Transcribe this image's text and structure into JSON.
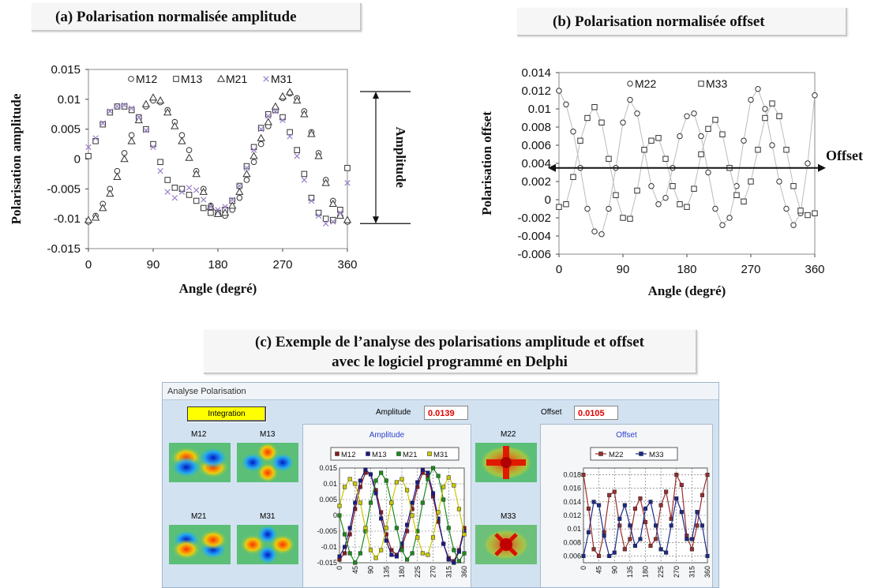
{
  "figure": {
    "panel_a_title": "(a)  Polarisation normalisée amplitude",
    "panel_b_title": "(b)  Polarisation normalisée offset",
    "panel_c_title_line1": "(c)   Exemple de l’analyse des polarisations amplitude et offset",
    "panel_c_title_line2": "avec le logiciel programmé en Delphi",
    "amplitude_annotation": "Amplitude",
    "offset_annotation": "Offset"
  },
  "app": {
    "window_title": "Analyse Polarisation",
    "integration_button": "Integration",
    "amplitude_label": "Amplitude",
    "amplitude_value": "0.0139",
    "offset_label": "Offset",
    "offset_value": "0.0105",
    "image_labels": {
      "m12": "M12",
      "m13": "M13",
      "m21": "M21",
      "m31": "M31",
      "m22": "M22",
      "m33": "M33"
    }
  },
  "chart_data": [
    {
      "id": "a",
      "type": "scatter",
      "xlabel": "Angle (degré)",
      "ylabel": "Polarisation amplitude",
      "xlim": [
        0,
        360
      ],
      "ylim": [
        -0.015,
        0.015
      ],
      "xticks": [
        "0",
        "90",
        "180",
        "270",
        "360"
      ],
      "yticks": [
        "-0.015",
        "-0.01",
        "-0.005",
        "0",
        "0.005",
        "0.01",
        "0.015"
      ],
      "legend": [
        "M12",
        "M13",
        "M21",
        "M31"
      ],
      "legend_position": "top",
      "x": [
        0,
        10,
        20,
        30,
        40,
        50,
        60,
        70,
        80,
        90,
        100,
        110,
        120,
        130,
        140,
        150,
        160,
        170,
        180,
        190,
        200,
        210,
        220,
        230,
        240,
        250,
        260,
        270,
        280,
        290,
        300,
        310,
        320,
        330,
        340,
        350,
        360
      ],
      "series": [
        {
          "name": "M12",
          "marker": "circle",
          "values": [
            -0.0105,
            -0.0095,
            -0.0075,
            -0.005,
            -0.002,
            0.001,
            0.004,
            0.0068,
            0.0088,
            0.0098,
            0.0095,
            0.0082,
            0.0062,
            0.004,
            0.0015,
            -0.002,
            -0.005,
            -0.0078,
            -0.0092,
            -0.0095,
            -0.0085,
            -0.0065,
            -0.0035,
            -0.0005,
            0.0025,
            0.0055,
            0.0082,
            0.0102,
            0.011,
            0.0102,
            0.008,
            0.0045,
            0.001,
            -0.0035,
            -0.007,
            -0.0095,
            -0.0105
          ]
        },
        {
          "name": "M13",
          "marker": "square",
          "values": [
            0.0005,
            0.003,
            0.0058,
            0.0078,
            0.0088,
            0.0088,
            0.0082,
            0.007,
            0.005,
            0.0025,
            -0.0005,
            -0.0035,
            -0.0048,
            -0.005,
            -0.006,
            -0.007,
            -0.0082,
            -0.009,
            -0.009,
            -0.0085,
            -0.007,
            -0.0045,
            -0.0012,
            0.002,
            0.0052,
            0.0075,
            0.0082,
            0.007,
            0.0045,
            0.0015,
            -0.0025,
            -0.0065,
            -0.009,
            -0.01,
            -0.0102,
            -0.0085,
            -0.0015
          ]
        },
        {
          "name": "M21",
          "marker": "triangle",
          "values": [
            -0.0102,
            -0.0098,
            -0.0082,
            -0.0058,
            -0.003,
            0.0,
            0.003,
            0.0065,
            0.0092,
            0.0103,
            0.0098,
            0.0078,
            0.0055,
            0.003,
            0.0002,
            -0.0025,
            -0.0055,
            -0.008,
            -0.0092,
            -0.009,
            -0.0078,
            -0.0055,
            -0.0025,
            0.0005,
            0.0035,
            0.0062,
            0.0088,
            0.0105,
            0.0112,
            0.0098,
            0.0075,
            0.0042,
            0.0005,
            -0.004,
            -0.0075,
            -0.0095,
            -0.0102
          ]
        },
        {
          "name": "M31",
          "marker": "x",
          "values": [
            0.002,
            0.0035,
            0.006,
            0.008,
            0.0088,
            0.009,
            0.0085,
            0.007,
            0.0048,
            0.002,
            -0.002,
            -0.0055,
            -0.0065,
            -0.0055,
            -0.0048,
            -0.0052,
            -0.0068,
            -0.008,
            -0.0085,
            -0.008,
            -0.0068,
            -0.0045,
            -0.0015,
            0.0015,
            0.005,
            0.0072,
            0.008,
            0.0065,
            0.0038,
            0.0005,
            -0.0035,
            -0.007,
            -0.0095,
            -0.0108,
            -0.0105,
            -0.009,
            -0.004
          ]
        }
      ]
    },
    {
      "id": "b",
      "type": "line",
      "xlabel": "Angle (degré)",
      "ylabel": "Polarisation offset",
      "xlim": [
        0,
        360
      ],
      "ylim": [
        -0.006,
        0.014
      ],
      "xticks": [
        "0",
        "90",
        "180",
        "270",
        "360"
      ],
      "yticks": [
        "-0.006",
        "-0.004",
        "-0.002",
        "0",
        "0.002",
        "0.004",
        "0.006",
        "0.008",
        "0.01",
        "0.012",
        "0.014"
      ],
      "legend": [
        "M22",
        "M33"
      ],
      "legend_position": "top",
      "x": [
        0,
        10,
        20,
        30,
        40,
        50,
        60,
        70,
        80,
        90,
        100,
        110,
        120,
        130,
        140,
        150,
        160,
        170,
        180,
        190,
        200,
        210,
        220,
        230,
        240,
        250,
        260,
        270,
        280,
        290,
        300,
        310,
        320,
        330,
        340,
        350,
        360
      ],
      "series": [
        {
          "name": "M22",
          "marker": "circle",
          "values": [
            0.012,
            0.0105,
            0.0075,
            0.0035,
            -0.001,
            -0.0035,
            -0.0038,
            -0.001,
            0.0035,
            0.0085,
            0.011,
            0.0095,
            0.0055,
            0.0015,
            -0.0005,
            0.0002,
            0.0035,
            0.007,
            0.0092,
            0.0095,
            0.007,
            0.003,
            -0.001,
            -0.0028,
            -0.002,
            0.0015,
            0.0065,
            0.011,
            0.0122,
            0.01,
            0.006,
            0.002,
            -0.001,
            -0.0028,
            -0.0015,
            0.004,
            0.0115
          ]
        },
        {
          "name": "M33",
          "marker": "square",
          "values": [
            -0.0008,
            -0.0005,
            0.0025,
            0.0065,
            0.009,
            0.0102,
            0.0085,
            0.0045,
            0.0005,
            -0.002,
            -0.0021,
            0.001,
            0.0055,
            0.0065,
            0.0068,
            0.0045,
            0.0015,
            -0.0005,
            -0.0008,
            0.0012,
            0.005,
            0.0078,
            0.0088,
            0.0072,
            0.0035,
            0.0005,
            -0.0002,
            0.002,
            0.0055,
            0.009,
            0.0106,
            0.0092,
            0.0055,
            0.0015,
            -0.0012,
            -0.0017,
            -0.0015
          ]
        }
      ]
    },
    {
      "id": "c-amplitude",
      "type": "line",
      "title": "Amplitude",
      "xlim": [
        0,
        360
      ],
      "ylim": [
        -0.015,
        0.015
      ],
      "xticks": [
        "0",
        "45",
        "90",
        "135",
        "180",
        "225",
        "270",
        "315",
        "360"
      ],
      "yticks": [
        "-0.015",
        "-0.01",
        "-0.005",
        "0",
        "0.005",
        "0.01",
        "0.015"
      ],
      "legend": [
        "M12",
        "M13",
        "M21",
        "M31"
      ],
      "legend_position": "top",
      "x": [
        0,
        15,
        30,
        45,
        60,
        75,
        90,
        105,
        120,
        135,
        150,
        165,
        180,
        195,
        210,
        225,
        240,
        255,
        270,
        285,
        300,
        315,
        330,
        345,
        360
      ],
      "series": [
        {
          "name": "M12",
          "color": "#8b1a1a",
          "values": [
            -0.014,
            -0.012,
            -0.006,
            0.002,
            0.009,
            0.0135,
            0.013,
            0.008,
            0.001,
            -0.006,
            -0.011,
            -0.0125,
            -0.01,
            -0.005,
            0.002,
            0.009,
            0.0135,
            0.0125,
            0.006,
            -0.002,
            -0.009,
            -0.0135,
            -0.0145,
            -0.011,
            -0.004
          ]
        },
        {
          "name": "M13",
          "color": "#1a1a8b",
          "values": [
            -0.013,
            -0.01,
            -0.004,
            0.004,
            0.011,
            0.0145,
            0.013,
            0.007,
            -0.001,
            -0.008,
            -0.0125,
            -0.013,
            -0.009,
            -0.003,
            0.004,
            0.0105,
            0.0145,
            0.0135,
            0.007,
            -0.001,
            -0.009,
            -0.014,
            -0.015,
            -0.0115,
            -0.005
          ]
        },
        {
          "name": "M21",
          "color": "#1a8b1a",
          "values": [
            0.0,
            -0.006,
            -0.012,
            -0.015,
            -0.012,
            -0.005,
            0.004,
            0.011,
            0.0135,
            0.011,
            0.004,
            -0.004,
            -0.011,
            -0.014,
            -0.012,
            -0.005,
            0.004,
            0.0115,
            0.015,
            0.0125,
            0.005,
            -0.004,
            -0.011,
            -0.0145,
            -0.012
          ]
        },
        {
          "name": "M31",
          "color": "#c8c800",
          "values": [
            0.003,
            0.009,
            0.0115,
            0.01,
            0.004,
            -0.004,
            -0.011,
            -0.0135,
            -0.011,
            -0.004,
            0.004,
            0.0105,
            0.0115,
            0.008,
            0.0,
            -0.007,
            -0.012,
            -0.0125,
            -0.007,
            0.001,
            0.009,
            0.012,
            0.0095,
            0.002,
            -0.006
          ]
        }
      ]
    },
    {
      "id": "c-offset",
      "type": "line",
      "title": "Offset",
      "xlim": [
        0,
        360
      ],
      "ylim": [
        0.005,
        0.019
      ],
      "xticks": [
        "0",
        "45",
        "90",
        "135",
        "180",
        "225",
        "270",
        "315",
        "360"
      ],
      "yticks": [
        "0.006",
        "0.008",
        "0.01",
        "0.012",
        "0.014",
        "0.016",
        "0.018"
      ],
      "legend": [
        "M22",
        "M33"
      ],
      "legend_position": "top",
      "x": [
        0,
        15,
        30,
        45,
        60,
        75,
        90,
        105,
        120,
        135,
        150,
        165,
        180,
        195,
        210,
        225,
        240,
        255,
        270,
        285,
        300,
        315,
        330,
        345,
        360
      ],
      "series": [
        {
          "name": "M22",
          "color": "#9b2d2d",
          "values": [
            0.018,
            0.013,
            0.007,
            0.006,
            0.0095,
            0.015,
            0.0155,
            0.0105,
            0.007,
            0.0085,
            0.013,
            0.0145,
            0.011,
            0.0075,
            0.0085,
            0.0135,
            0.0155,
            0.0115,
            0.018,
            0.0165,
            0.009,
            0.007,
            0.0105,
            0.015,
            0.018
          ]
        },
        {
          "name": "M33",
          "color": "#1c2a8a",
          "values": [
            0.006,
            0.0095,
            0.014,
            0.0135,
            0.009,
            0.006,
            0.0065,
            0.0115,
            0.0135,
            0.0105,
            0.0075,
            0.0085,
            0.013,
            0.014,
            0.0105,
            0.007,
            0.0065,
            0.0105,
            0.0145,
            0.0125,
            0.0085,
            0.0085,
            0.0125,
            0.0105,
            0.006
          ]
        }
      ]
    }
  ]
}
